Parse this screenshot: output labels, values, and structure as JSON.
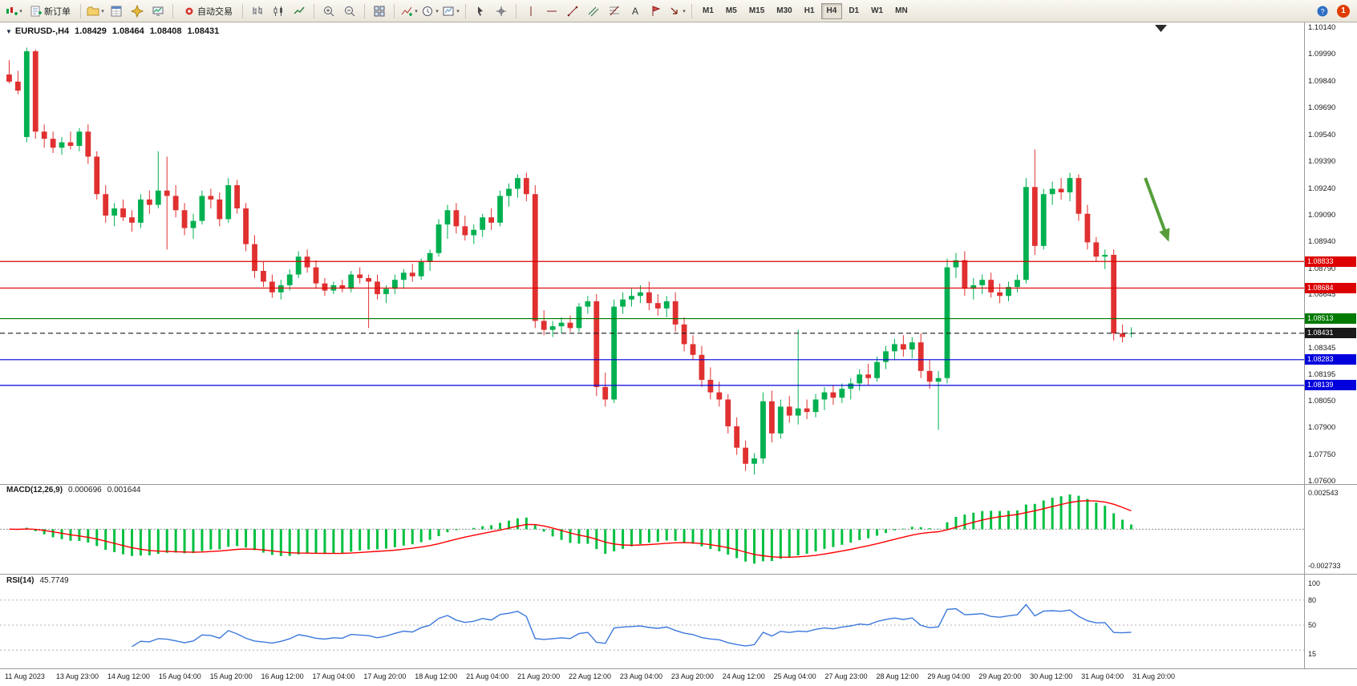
{
  "toolbar": {
    "buttons": {
      "new_order": "新订单",
      "autotrade": "自动交易"
    },
    "timeframes": [
      "M1",
      "M5",
      "M15",
      "M30",
      "H1",
      "H4",
      "D1",
      "W1",
      "MN"
    ],
    "active_timeframe": "H4",
    "notification_count": "1"
  },
  "chart": {
    "title": "EURUSD-,H4",
    "ohlc": {
      "open": "1.08429",
      "high": "1.08464",
      "low": "1.08408",
      "close": "1.08431"
    },
    "price_ticks": [
      "1.10140",
      "1.09990",
      "1.09840",
      "1.09690",
      "1.09540",
      "1.09390",
      "1.09240",
      "1.09090",
      "1.08940",
      "1.08790",
      "1.08645",
      "1.08495",
      "1.08345",
      "1.08195",
      "1.08050",
      "1.07900",
      "1.07750",
      "1.07600"
    ],
    "levels": [
      {
        "price": 1.08833,
        "label": "1.08833",
        "color": "#dd0000",
        "style": "solid"
      },
      {
        "price": 1.08684,
        "label": "1.08684",
        "color": "#dd0000",
        "style": "solid"
      },
      {
        "price": 1.08513,
        "label": "1.08513",
        "color": "#007a00",
        "style": "solid"
      },
      {
        "price": 1.08431,
        "label": "1.08431",
        "color": "#1a1a1a",
        "style": "dashed"
      },
      {
        "price": 1.08283,
        "label": "1.08283",
        "color": "#0000dd",
        "style": "solid"
      },
      {
        "price": 1.08139,
        "label": "1.08139",
        "color": "#0000dd",
        "style": "solid"
      }
    ],
    "time_labels": [
      "11 Aug 2023",
      "13 Aug 23:00",
      "14 Aug 12:00",
      "15 Aug 04:00",
      "15 Aug 20:00",
      "16 Aug 12:00",
      "17 Aug 04:00",
      "17 Aug 20:00",
      "18 Aug 12:00",
      "21 Aug 04:00",
      "21 Aug 20:00",
      "22 Aug 12:00",
      "23 Aug 04:00",
      "23 Aug 20:00",
      "24 Aug 12:00",
      "25 Aug 04:00",
      "27 Aug 23:00",
      "28 Aug 12:00",
      "29 Aug 04:00",
      "29 Aug 20:00",
      "30 Aug 12:00",
      "31 Aug 04:00",
      "31 Aug 20:00"
    ]
  },
  "macd_panel": {
    "label": "MACD(12,26,9)",
    "value_main": "0.000696",
    "value_signal": "0.001644",
    "scale_top": "0.002543",
    "scale_bottom": "-0.002733"
  },
  "rsi_panel": {
    "label": "RSI(14)",
    "value": "45.7749",
    "scale": [
      "100",
      "80",
      "50",
      "15"
    ]
  },
  "chart_data": {
    "type": "candlestick",
    "symbol": "EURUSD-",
    "timeframe": "H4",
    "price_range": [
      1.076,
      1.1014
    ],
    "macd_range": [
      -0.002733,
      0.002543
    ],
    "indicator_params": {
      "macd": [
        12,
        26,
        9
      ],
      "rsi": 14
    },
    "colors": {
      "up": "#00b050",
      "down": "#e03030",
      "macd_hist": "#00c040",
      "macd_signal": "#ff0000",
      "rsi": "#3c78dc",
      "arrow": "#569e3a"
    },
    "candles": [
      [
        1.0988,
        1.0996,
        1.0983,
        1.0984
      ],
      [
        1.0984,
        1.099,
        1.0977,
        1.0979
      ],
      [
        1.0953,
        1.1003,
        1.095,
        1.1001
      ],
      [
        1.1001,
        1.1002,
        1.0952,
        1.0956
      ],
      [
        1.0956,
        1.096,
        1.0947,
        1.0952
      ],
      [
        1.0952,
        1.0956,
        1.0944,
        1.0947
      ],
      [
        1.0947,
        1.0953,
        1.0943,
        1.095
      ],
      [
        1.095,
        1.0956,
        1.0946,
        1.0948
      ],
      [
        1.0948,
        1.0958,
        1.0945,
        1.0956
      ],
      [
        1.0956,
        1.096,
        1.0938,
        1.0942
      ],
      [
        1.0942,
        1.0945,
        1.0918,
        1.0921
      ],
      [
        1.0921,
        1.0926,
        1.0905,
        1.0909
      ],
      [
        1.0909,
        1.0916,
        1.0903,
        1.0913
      ],
      [
        1.0913,
        1.0918,
        1.0906,
        1.0908
      ],
      [
        1.0908,
        1.0912,
        1.09,
        1.0905
      ],
      [
        1.0905,
        1.0921,
        1.0902,
        1.0918
      ],
      [
        1.0918,
        1.0923,
        1.091,
        1.0915
      ],
      [
        1.0915,
        1.0945,
        1.0913,
        1.0923
      ],
      [
        1.0923,
        1.0942,
        1.089,
        1.092
      ],
      [
        1.092,
        1.0926,
        1.0908,
        1.0912
      ],
      [
        1.0912,
        1.0916,
        1.0898,
        1.0902
      ],
      [
        1.0902,
        1.091,
        1.0896,
        1.0906
      ],
      [
        1.0906,
        1.0923,
        1.0904,
        1.092
      ],
      [
        1.092,
        1.0924,
        1.0913,
        1.0918
      ],
      [
        1.0918,
        1.0922,
        1.0903,
        1.0907
      ],
      [
        1.0907,
        1.093,
        1.0905,
        1.0926
      ],
      [
        1.0926,
        1.0929,
        1.091,
        1.0913
      ],
      [
        1.0913,
        1.0916,
        1.0889,
        1.0893
      ],
      [
        1.0893,
        1.0898,
        1.0874,
        1.0878
      ],
      [
        1.0878,
        1.0883,
        1.0869,
        1.0872
      ],
      [
        1.0872,
        1.0876,
        1.0863,
        1.0866
      ],
      [
        1.0866,
        1.0873,
        1.0862,
        1.087
      ],
      [
        1.087,
        1.0879,
        1.0867,
        1.0876
      ],
      [
        1.0876,
        1.0889,
        1.0874,
        1.0886
      ],
      [
        1.0886,
        1.089,
        1.0877,
        1.088
      ],
      [
        1.088,
        1.0884,
        1.0868,
        1.0871
      ],
      [
        1.0871,
        1.0874,
        1.0864,
        1.0867
      ],
      [
        1.0867,
        1.0872,
        1.0865,
        1.087
      ],
      [
        1.087,
        1.0873,
        1.0866,
        1.0868
      ],
      [
        1.0868,
        1.0878,
        1.0866,
        1.0876
      ],
      [
        1.0876,
        1.088,
        1.0871,
        1.0874
      ],
      [
        1.0874,
        1.0876,
        1.0846,
        1.0872
      ],
      [
        1.0872,
        1.0876,
        1.0862,
        1.0865
      ],
      [
        1.0865,
        1.087,
        1.086,
        1.0868
      ],
      [
        1.0868,
        1.0876,
        1.0865,
        1.0873
      ],
      [
        1.0873,
        1.0879,
        1.0868,
        1.0877
      ],
      [
        1.0877,
        1.0882,
        1.0872,
        1.0875
      ],
      [
        1.0875,
        1.0885,
        1.0873,
        1.0883
      ],
      [
        1.0883,
        1.089,
        1.0878,
        1.0888
      ],
      [
        1.0888,
        1.0907,
        1.0886,
        1.0904
      ],
      [
        1.0904,
        1.0915,
        1.0896,
        1.0912
      ],
      [
        1.0912,
        1.0916,
        1.0899,
        1.0903
      ],
      [
        1.0903,
        1.0909,
        1.0895,
        1.0898
      ],
      [
        1.0898,
        1.0904,
        1.0893,
        1.0901
      ],
      [
        1.0901,
        1.091,
        1.0897,
        1.0908
      ],
      [
        1.0908,
        1.0913,
        1.0901,
        1.0905
      ],
      [
        1.0905,
        1.0923,
        1.0903,
        1.092
      ],
      [
        1.092,
        1.0927,
        1.0914,
        1.0924
      ],
      [
        1.0924,
        1.0932,
        1.0919,
        1.093
      ],
      [
        1.093,
        1.0933,
        1.0917,
        1.0921
      ],
      [
        1.0921,
        1.0926,
        1.0846,
        1.085
      ],
      [
        1.085,
        1.0856,
        1.0842,
        1.0845
      ],
      [
        1.0845,
        1.085,
        1.0841,
        1.0847
      ],
      [
        1.0847,
        1.0852,
        1.0843,
        1.0849
      ],
      [
        1.0849,
        1.0853,
        1.0844,
        1.0846
      ],
      [
        1.0846,
        1.086,
        1.0844,
        1.0858
      ],
      [
        1.0858,
        1.0864,
        1.0854,
        1.0861
      ],
      [
        1.0861,
        1.0865,
        1.0808,
        1.0813
      ],
      [
        1.0813,
        1.0821,
        1.0802,
        1.0806
      ],
      [
        1.0806,
        1.0862,
        1.0804,
        1.0858
      ],
      [
        1.0858,
        1.0866,
        1.0854,
        1.0862
      ],
      [
        1.0862,
        1.0868,
        1.0858,
        1.0864
      ],
      [
        1.0864,
        1.087,
        1.086,
        1.0866
      ],
      [
        1.0866,
        1.0872,
        1.0856,
        1.086
      ],
      [
        1.086,
        1.0865,
        1.0853,
        1.0857
      ],
      [
        1.0857,
        1.0864,
        1.0852,
        1.0861
      ],
      [
        1.0861,
        1.0866,
        1.0844,
        1.0848
      ],
      [
        1.0848,
        1.0852,
        1.0833,
        1.0837
      ],
      [
        1.0837,
        1.0842,
        1.0828,
        1.0831
      ],
      [
        1.0831,
        1.0836,
        1.0813,
        1.0817
      ],
      [
        1.0817,
        1.0824,
        1.0806,
        1.081
      ],
      [
        1.081,
        1.0816,
        1.0802,
        1.0806
      ],
      [
        1.0806,
        1.0809,
        1.0787,
        1.0791
      ],
      [
        1.0791,
        1.0796,
        1.0775,
        1.0779
      ],
      [
        1.0779,
        1.0783,
        1.0766,
        1.077
      ],
      [
        1.077,
        1.0776,
        1.0764,
        1.0773
      ],
      [
        1.0773,
        1.081,
        1.077,
        1.0805
      ],
      [
        1.0805,
        1.0811,
        1.0782,
        1.0787
      ],
      [
        1.0787,
        1.0806,
        1.0784,
        1.0802
      ],
      [
        1.0802,
        1.0808,
        1.0793,
        1.0797
      ],
      [
        1.0797,
        1.0845,
        1.0792,
        1.0801
      ],
      [
        1.0801,
        1.0806,
        1.0795,
        1.0799
      ],
      [
        1.0799,
        1.0809,
        1.0796,
        1.0806
      ],
      [
        1.0806,
        1.0813,
        1.08,
        1.081
      ],
      [
        1.081,
        1.0814,
        1.0803,
        1.0807
      ],
      [
        1.0807,
        1.0815,
        1.0804,
        1.0812
      ],
      [
        1.0812,
        1.0818,
        1.0806,
        1.0815
      ],
      [
        1.0815,
        1.0823,
        1.0811,
        1.082
      ],
      [
        1.082,
        1.0826,
        1.0814,
        1.0818
      ],
      [
        1.0818,
        1.083,
        1.0816,
        1.0827
      ],
      [
        1.0827,
        1.0836,
        1.0823,
        1.0833
      ],
      [
        1.0833,
        1.084,
        1.0828,
        1.0837
      ],
      [
        1.0837,
        1.0842,
        1.083,
        1.0834
      ],
      [
        1.0834,
        1.0841,
        1.0829,
        1.0838
      ],
      [
        1.0838,
        1.0843,
        1.0818,
        1.0822
      ],
      [
        1.0822,
        1.0828,
        1.0812,
        1.0816
      ],
      [
        1.0816,
        1.0822,
        1.0789,
        1.0818
      ],
      [
        1.0818,
        1.0885,
        1.0815,
        1.088
      ],
      [
        1.088,
        1.0888,
        1.0874,
        1.0884
      ],
      [
        1.0884,
        1.0889,
        1.0864,
        1.0868
      ],
      [
        1.0868,
        1.0874,
        1.0862,
        1.087
      ],
      [
        1.087,
        1.0876,
        1.0865,
        1.0873
      ],
      [
        1.0873,
        1.0877,
        1.0863,
        1.0866
      ],
      [
        1.0866,
        1.0871,
        1.086,
        1.0864
      ],
      [
        1.0864,
        1.0872,
        1.0861,
        1.0869
      ],
      [
        1.0869,
        1.0876,
        1.0866,
        1.0873
      ],
      [
        1.0873,
        1.093,
        1.0871,
        1.0925
      ],
      [
        1.0925,
        1.0946,
        1.0887,
        1.0892
      ],
      [
        1.0892,
        1.0924,
        1.089,
        1.0921
      ],
      [
        1.0921,
        1.0928,
        1.0915,
        1.0924
      ],
      [
        1.0924,
        1.093,
        1.0918,
        1.0922
      ],
      [
        1.0922,
        1.0933,
        1.0917,
        1.093
      ],
      [
        1.093,
        1.0932,
        1.0906,
        1.091
      ],
      [
        1.091,
        1.0915,
        1.089,
        1.0894
      ],
      [
        1.0894,
        1.0897,
        1.0883,
        1.0886
      ],
      [
        1.0886,
        1.089,
        1.0879,
        1.0887
      ],
      [
        1.0887,
        1.089,
        1.0839,
        1.0843
      ],
      [
        1.0843,
        1.0848,
        1.0838,
        1.0841
      ],
      [
        1.08429,
        1.08464,
        1.08408,
        1.08431
      ]
    ]
  }
}
